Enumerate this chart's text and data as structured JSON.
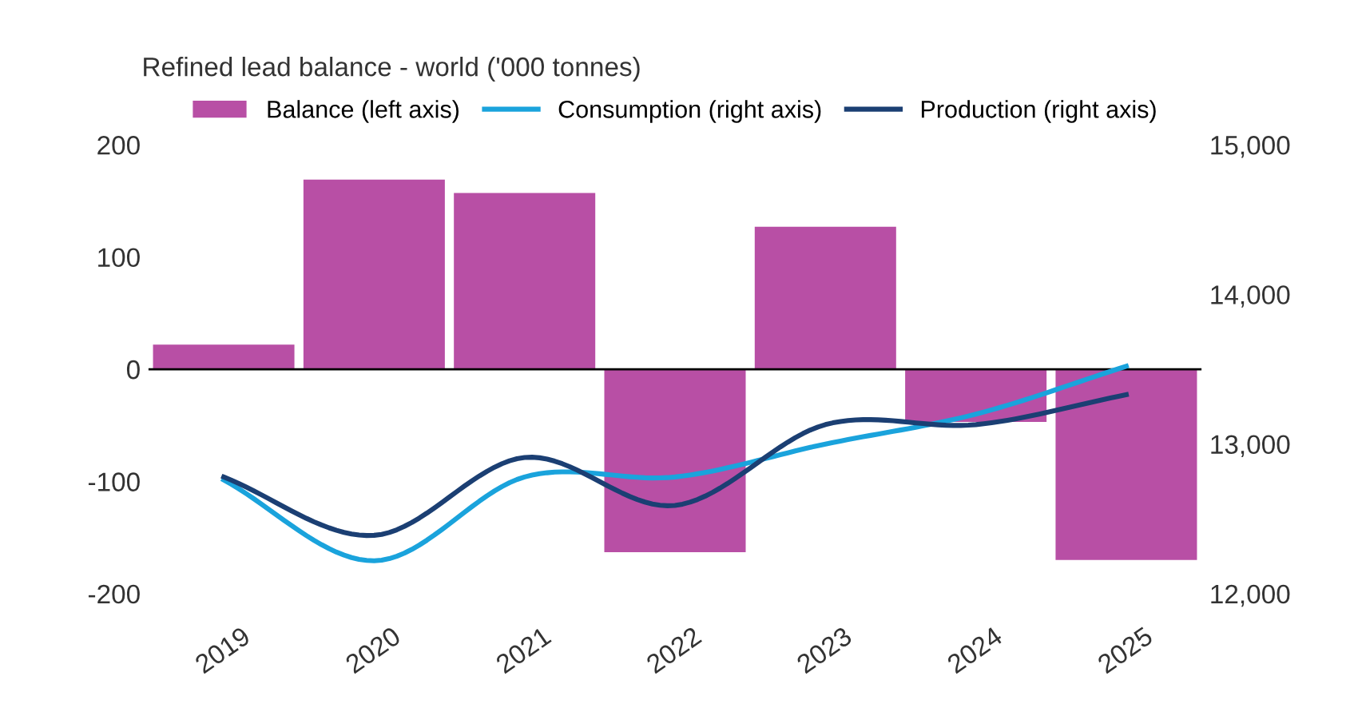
{
  "chart_data": {
    "type": "bar",
    "title": "Refined lead balance - world ('000 tonnes)",
    "categories": [
      "2019",
      "2020",
      "2021",
      "2022",
      "2023",
      "2024",
      "2025"
    ],
    "series": [
      {
        "name": "Balance (left axis)",
        "color": "#b84fa5",
        "values": [
          22,
          169,
          157,
          -163,
          127,
          -47,
          -170
        ]
      },
      {
        "name": "Consumption (right axis)",
        "type": "line",
        "axis": "y2",
        "color": "#1aa3dc",
        "values": [
          12760,
          12220,
          12780,
          12780,
          13000,
          13200,
          13520
        ]
      },
      {
        "name": "Production (right axis)",
        "type": "line",
        "axis": "y2",
        "color": "#1b3f73",
        "values": [
          12780,
          12390,
          12910,
          12590,
          13130,
          13130,
          13330
        ]
      }
    ],
    "ylim": [
      -200,
      200
    ],
    "yticks": [
      -200,
      -100,
      0,
      100,
      200
    ],
    "y2lim": [
      12000,
      15000
    ],
    "y2ticks": [
      {
        "value": 12000,
        "label": "12,000"
      },
      {
        "value": 13000,
        "label": "13,000"
      },
      {
        "value": 14000,
        "label": "14,000"
      },
      {
        "value": 15000,
        "label": "15,000"
      }
    ],
    "ref_lines": [
      {
        "axis": "y",
        "value": 0,
        "color": "#000000"
      }
    ],
    "grid": false,
    "legend": "top"
  }
}
